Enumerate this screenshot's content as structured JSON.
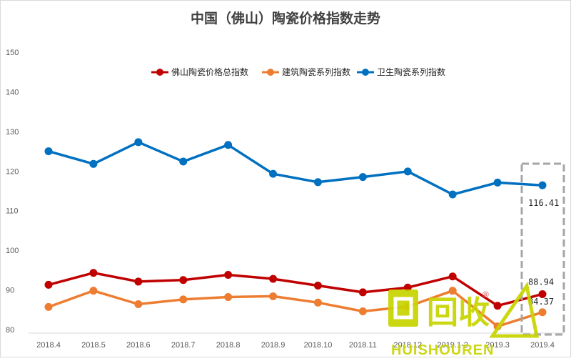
{
  "chart_data": {
    "type": "line",
    "title": "中国（佛山）陶瓷价格指数走势",
    "xlabel": "",
    "ylabel": "",
    "ylim": [
      80,
      150
    ],
    "y_ticks": [
      80,
      90,
      100,
      110,
      120,
      130,
      140,
      150
    ],
    "categories": [
      "2018.4",
      "2018.5",
      "2018.6",
      "2018.7",
      "2018.8",
      "2018.9",
      "2018.10",
      "2018.11",
      "2018.12",
      "2019.1-2",
      "2019.3",
      "2019.4"
    ],
    "series": [
      {
        "name": "佛山陶瓷价格总指数",
        "color": "#c00000",
        "values": [
          91.3,
          94.3,
          92.1,
          92.5,
          93.8,
          92.8,
          91.1,
          89.4,
          90.6,
          93.4,
          86.0,
          88.94
        ]
      },
      {
        "name": "建筑陶瓷系列指数",
        "color": "#ed7d31",
        "values": [
          85.7,
          89.8,
          86.4,
          87.6,
          88.2,
          88.4,
          86.8,
          84.6,
          85.8,
          89.8,
          80.8,
          84.37
        ]
      },
      {
        "name": "卫生陶瓷系列指数",
        "color": "#0070c0",
        "values": [
          125.0,
          121.8,
          127.3,
          122.4,
          126.6,
          119.3,
          117.2,
          118.5,
          119.9,
          114.1,
          117.1,
          116.41
        ]
      }
    ],
    "data_labels": [
      "116.41",
      "88.94",
      "84.37"
    ],
    "highlight_category": "2019.4",
    "grid": false,
    "legend_position": "top-center"
  },
  "watermark": {
    "logo_text": "回收",
    "brand_text": "HUISHOUREN",
    "registered_mark": "®",
    "color": "#c8d400"
  }
}
